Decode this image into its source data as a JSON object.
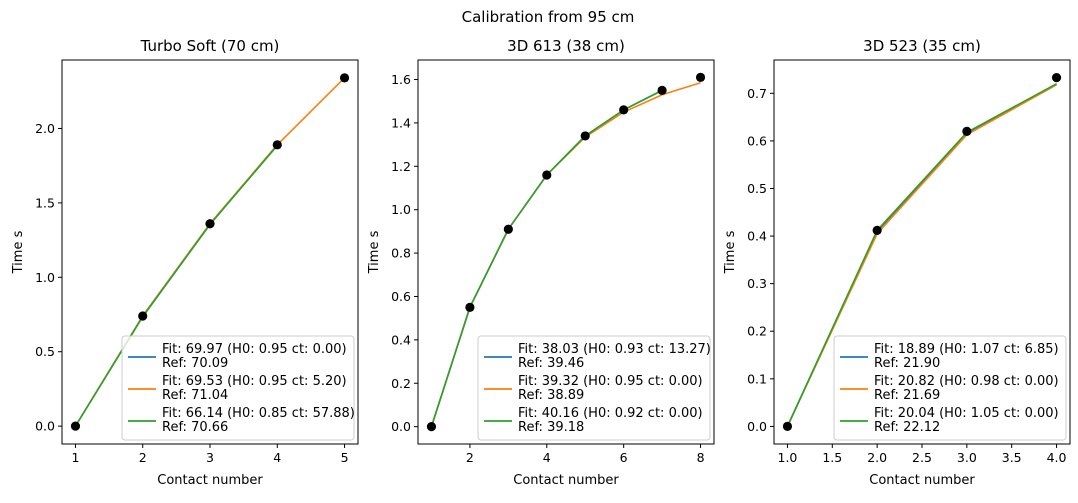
{
  "suptitle": "Calibration from 95 cm",
  "colors": {
    "fit_blue": "#1f77b4",
    "fit_orange": "#ff7f0e",
    "fit_green": "#2ca02c",
    "points": "#000000"
  },
  "chart_data": [
    {
      "type": "line",
      "title": "Turbo Soft (70 cm)",
      "xlabel": "Contact number",
      "ylabel": "Time s",
      "xlim": [
        0.8,
        5.2
      ],
      "ylim": [
        -0.12,
        2.46
      ],
      "xticks": [
        1,
        2,
        3,
        4,
        5
      ],
      "xtick_labels": [
        "1",
        "2",
        "3",
        "4",
        "5"
      ],
      "yticks": [
        0.0,
        0.5,
        1.0,
        1.5,
        2.0
      ],
      "ytick_labels": [
        "0.0",
        "0.5",
        "1.0",
        "1.5",
        "2.0"
      ],
      "legend_position": "lower-right",
      "points": {
        "x": [
          1,
          2,
          3,
          4,
          5
        ],
        "y": [
          0.0,
          0.74,
          1.36,
          1.89,
          2.34
        ]
      },
      "series": [
        {
          "name_line1": "Fit: 69.97 (H0: 0.95 ct: 0.00)",
          "name_line2": "Ref: 70.09",
          "color": "#1f77b4",
          "x": [
            1,
            2,
            3,
            4
          ],
          "y": [
            0.0,
            0.74,
            1.36,
            1.89
          ]
        },
        {
          "name_line1": "Fit: 69.53 (H0: 0.95 ct: 5.20)",
          "name_line2": "Ref: 71.04",
          "color": "#ff7f0e",
          "x": [
            1,
            2,
            3,
            4,
            5
          ],
          "y": [
            0.0,
            0.74,
            1.36,
            1.89,
            2.34
          ]
        },
        {
          "name_line1": "Fit: 66.14 (H0: 0.85 ct: 57.88)",
          "name_line2": "Ref: 70.66",
          "color": "#2ca02c",
          "x": [
            1,
            2,
            3,
            4
          ],
          "y": [
            0.0,
            0.735,
            1.355,
            1.885
          ]
        }
      ]
    },
    {
      "type": "line",
      "title": "3D 613 (38 cm)",
      "xlabel": "Contact number",
      "ylabel": "Time s",
      "xlim": [
        0.65,
        8.35
      ],
      "ylim": [
        -0.08,
        1.69
      ],
      "xticks": [
        2,
        4,
        6,
        8
      ],
      "xtick_labels": [
        "2",
        "4",
        "6",
        "8"
      ],
      "yticks": [
        0.0,
        0.2,
        0.4,
        0.6,
        0.8,
        1.0,
        1.2,
        1.4,
        1.6
      ],
      "ytick_labels": [
        "0.0",
        "0.2",
        "0.4",
        "0.6",
        "0.8",
        "1.0",
        "1.2",
        "1.4",
        "1.6"
      ],
      "legend_position": "lower-right",
      "points": {
        "x": [
          1,
          2,
          3,
          4,
          5,
          6,
          7,
          8
        ],
        "y": [
          0.0,
          0.55,
          0.91,
          1.16,
          1.34,
          1.46,
          1.55,
          1.61
        ]
      },
      "series": [
        {
          "name_line1": "Fit: 38.03 (H0: 0.93 ct: 13.27)",
          "name_line2": "Ref: 39.46",
          "color": "#1f77b4",
          "x": [
            1,
            2,
            3,
            4,
            5,
            6,
            7
          ],
          "y": [
            0.0,
            0.55,
            0.91,
            1.16,
            1.34,
            1.46,
            1.55
          ]
        },
        {
          "name_line1": "Fit: 39.32 (H0: 0.95 ct: 0.00)",
          "name_line2": "Ref: 38.89",
          "color": "#ff7f0e",
          "x": [
            1,
            2,
            3,
            4,
            5,
            6,
            7,
            8
          ],
          "y": [
            0.0,
            0.55,
            0.91,
            1.16,
            1.335,
            1.45,
            1.53,
            1.585
          ]
        },
        {
          "name_line1": "Fit: 40.16 (H0: 0.92 ct: 0.00)",
          "name_line2": "Ref: 39.18",
          "color": "#2ca02c",
          "x": [
            1,
            2,
            3,
            4,
            5,
            6,
            7
          ],
          "y": [
            0.0,
            0.55,
            0.91,
            1.16,
            1.34,
            1.46,
            1.55
          ]
        }
      ]
    },
    {
      "type": "line",
      "title": "3D 523 (35 cm)",
      "xlabel": "Contact number",
      "ylabel": "Time s",
      "xlim": [
        0.85,
        4.15
      ],
      "ylim": [
        -0.037,
        0.77
      ],
      "xticks": [
        1.0,
        1.5,
        2.0,
        2.5,
        3.0,
        3.5,
        4.0
      ],
      "xtick_labels": [
        "1.0",
        "1.5",
        "2.0",
        "2.5",
        "3.0",
        "3.5",
        "4.0"
      ],
      "yticks": [
        0.0,
        0.1,
        0.2,
        0.3,
        0.4,
        0.5,
        0.6,
        0.7
      ],
      "ytick_labels": [
        "0.0",
        "0.1",
        "0.2",
        "0.3",
        "0.4",
        "0.5",
        "0.6",
        "0.7"
      ],
      "legend_position": "lower-right",
      "points": {
        "x": [
          1,
          2,
          3,
          4
        ],
        "y": [
          0.0,
          0.412,
          0.62,
          0.733
        ]
      },
      "series": [
        {
          "name_line1": "Fit: 18.89 (H0: 1.07 ct: 6.85)",
          "name_line2": "Ref: 21.90",
          "color": "#1f77b4",
          "x": [
            1,
            2,
            3,
            4
          ],
          "y": [
            0.0,
            0.41,
            0.615,
            0.72
          ]
        },
        {
          "name_line1": "Fit: 20.82 (H0: 0.98 ct: 0.00)",
          "name_line2": "Ref: 21.69",
          "color": "#ff7f0e",
          "x": [
            1,
            2,
            3,
            4
          ],
          "y": [
            0.0,
            0.405,
            0.613,
            0.718
          ]
        },
        {
          "name_line1": "Fit: 20.04 (H0: 1.05 ct: 0.00)",
          "name_line2": "Ref: 22.12",
          "color": "#2ca02c",
          "x": [
            1,
            2,
            3,
            4
          ],
          "y": [
            0.0,
            0.412,
            0.618,
            0.72
          ]
        }
      ]
    }
  ]
}
